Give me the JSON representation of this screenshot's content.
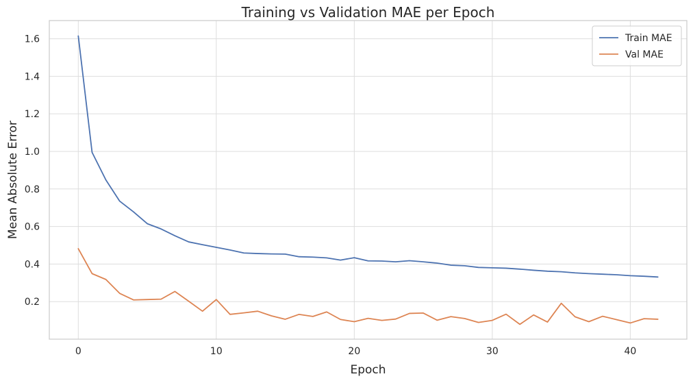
{
  "chart_data": {
    "type": "line",
    "title": "Training vs Validation MAE per Epoch",
    "xlabel": "Epoch",
    "ylabel": "Mean Absolute Error",
    "xlim": [
      -2.1,
      44.1
    ],
    "ylim": [
      0.0,
      1.697
    ],
    "xticks": [
      0,
      10,
      20,
      30,
      40
    ],
    "yticks": [
      0.2,
      0.4,
      0.6,
      0.8,
      1.0,
      1.2,
      1.4,
      1.6
    ],
    "xtick_labels": [
      "0",
      "10",
      "20",
      "30",
      "40"
    ],
    "ytick_labels": [
      "0.2",
      "0.4",
      "0.6",
      "0.8",
      "1.0",
      "1.2",
      "1.4",
      "1.6"
    ],
    "grid": true,
    "legend_position": "top-right",
    "x": [
      0,
      1,
      2,
      3,
      4,
      5,
      6,
      7,
      8,
      9,
      10,
      11,
      12,
      13,
      14,
      15,
      16,
      17,
      18,
      19,
      20,
      21,
      22,
      23,
      24,
      25,
      26,
      27,
      28,
      29,
      30,
      31,
      32,
      33,
      34,
      35,
      36,
      37,
      38,
      39,
      40,
      41,
      42
    ],
    "series": [
      {
        "name": "Train MAE",
        "color": "#4c72b0",
        "values": [
          1.615,
          0.995,
          0.848,
          0.735,
          0.678,
          0.615,
          0.587,
          0.551,
          0.518,
          0.503,
          0.489,
          0.475,
          0.459,
          0.456,
          0.454,
          0.453,
          0.439,
          0.437,
          0.433,
          0.421,
          0.434,
          0.417,
          0.416,
          0.412,
          0.418,
          0.412,
          0.405,
          0.394,
          0.391,
          0.382,
          0.38,
          0.378,
          0.373,
          0.367,
          0.362,
          0.359,
          0.353,
          0.349,
          0.346,
          0.343,
          0.338,
          0.335,
          0.331
        ]
      },
      {
        "name": "Val MAE",
        "color": "#dd8452",
        "values": [
          0.482,
          0.349,
          0.318,
          0.244,
          0.209,
          0.211,
          0.213,
          0.254,
          0.202,
          0.149,
          0.211,
          0.132,
          0.14,
          0.149,
          0.124,
          0.106,
          0.132,
          0.121,
          0.145,
          0.105,
          0.093,
          0.111,
          0.1,
          0.107,
          0.137,
          0.139,
          0.101,
          0.12,
          0.11,
          0.089,
          0.1,
          0.133,
          0.079,
          0.129,
          0.091,
          0.191,
          0.119,
          0.093,
          0.122,
          0.104,
          0.086,
          0.109,
          0.106
        ]
      }
    ]
  }
}
